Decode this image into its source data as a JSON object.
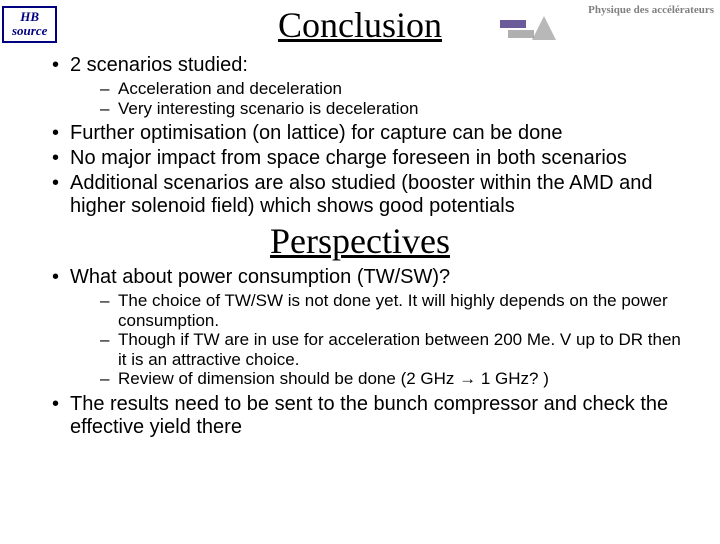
{
  "hb_source_line1": "HB",
  "hb_source_line2": "source",
  "top_right": "Physique des accélérateurs",
  "title1": "Conclusion",
  "title2": "Perspectives",
  "bullets1": {
    "b1": "2 scenarios studied:",
    "b1_sub1": "Acceleration and deceleration",
    "b1_sub2": "Very interesting scenario is deceleration",
    "b2": "Further optimisation (on lattice) for capture can be done",
    "b3": "No major impact from space charge foreseen in both scenarios",
    "b4": "Additional scenarios are also studied (booster within the AMD and higher solenoid field) which shows good potentials"
  },
  "bullets2": {
    "b1": "What about power consumption (TW/SW)?",
    "b1_sub1": "The choice of TW/SW is not done yet. It will highly depends on the power consumption.",
    "b1_sub2": "Though if TW are in use for acceleration between 200 Me. V up to DR then it is an attractive choice.",
    "b1_sub3": "Review of dimension should be done (2 GHz → 1 GHz? )",
    "b2": "The results need to be sent to the bunch compressor and check the effective yield there"
  }
}
